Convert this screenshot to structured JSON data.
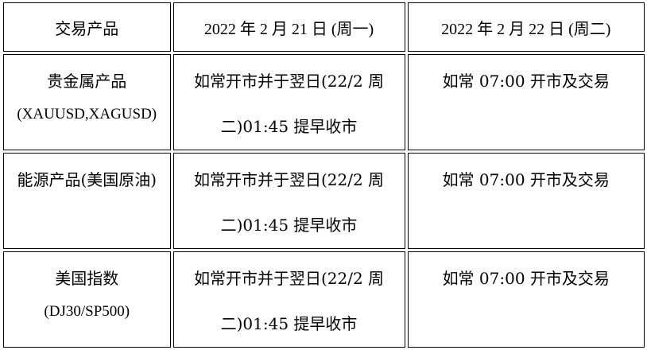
{
  "headers": [
    "交易产品",
    "2022 年 2 月 21 日 (周一)",
    "2022 年 2 月 22 日 (周二)"
  ],
  "rows": [
    {
      "product": "贵金属产品",
      "product_sub": "(XAUUSD,XAGUSD)",
      "mon": [
        "如常开市并于翌日(22/2  周",
        "二)01:45 提早收市"
      ],
      "tue": "如常 07:00 开市及交易"
    },
    {
      "product": "能源产品(美国原油)",
      "product_sub": "",
      "mon": [
        "如常开市并于翌日(22/2  周",
        "二)01:45 提早收市"
      ],
      "tue": "如常 07:00 开市及交易"
    },
    {
      "product": "美国指数",
      "product_sub": "(DJ30/SP500)",
      "mon": [
        "如常开市并于翌日(22/2  周",
        "二)01:45 提早收市"
      ],
      "tue": "如常 07:00 开市及交易"
    }
  ]
}
